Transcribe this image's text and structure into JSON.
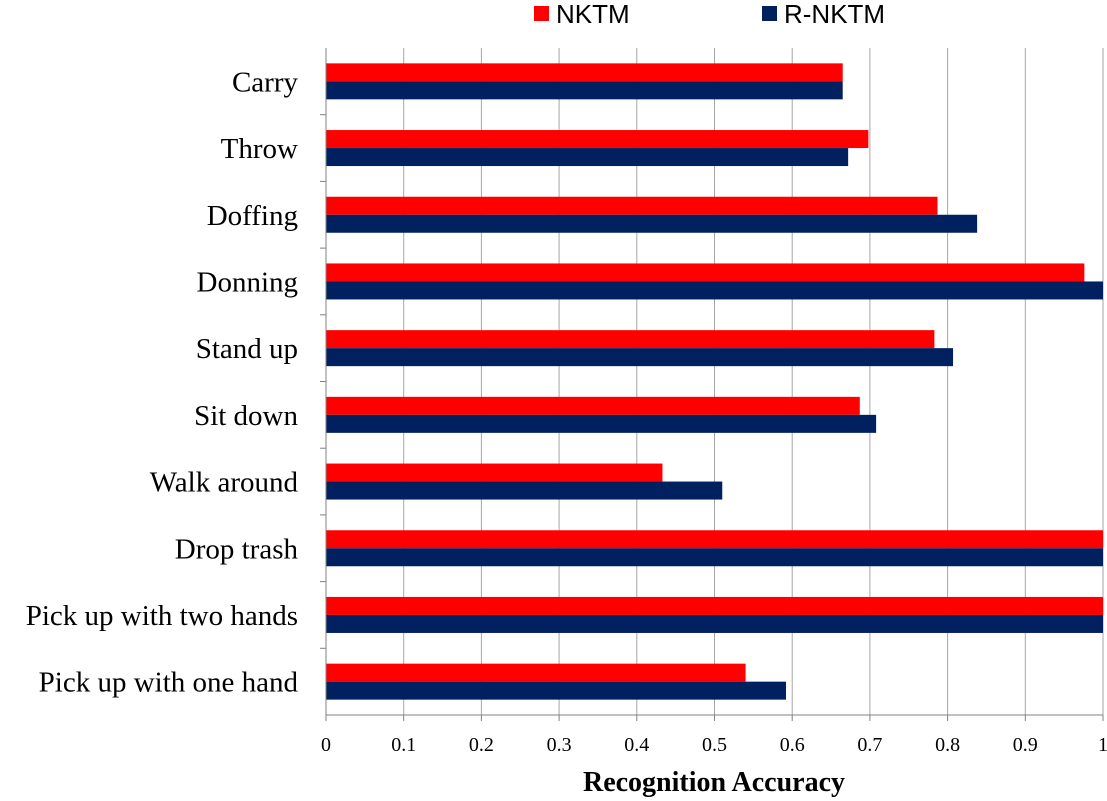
{
  "chart_data": {
    "type": "bar",
    "orientation": "horizontal",
    "categories": [
      "Carry",
      "Throw",
      "Doffing",
      "Donning",
      "Stand up",
      "Sit down",
      "Walk around",
      "Drop trash",
      "Pick up with two hands",
      "Pick up with one hand"
    ],
    "series": [
      {
        "name": "NKTM",
        "color": "#ff0000",
        "values": [
          0.665,
          0.698,
          0.787,
          0.976,
          0.783,
          0.687,
          0.433,
          1.0,
          1.0,
          0.54
        ]
      },
      {
        "name": "R-NKTM",
        "color": "#002060",
        "values": [
          0.665,
          0.672,
          0.838,
          1.0,
          0.807,
          0.708,
          0.51,
          1.0,
          1.0,
          0.592
        ]
      }
    ],
    "xlabel": "Recognition Accuracy",
    "ylabel": "",
    "xlim": [
      0,
      1
    ],
    "xticks": [
      "0",
      "0.1",
      "0.2",
      "0.3",
      "0.4",
      "0.5",
      "0.6",
      "0.7",
      "0.8",
      "0.9",
      "1"
    ],
    "grid": "vertical",
    "legend_position": "top"
  }
}
